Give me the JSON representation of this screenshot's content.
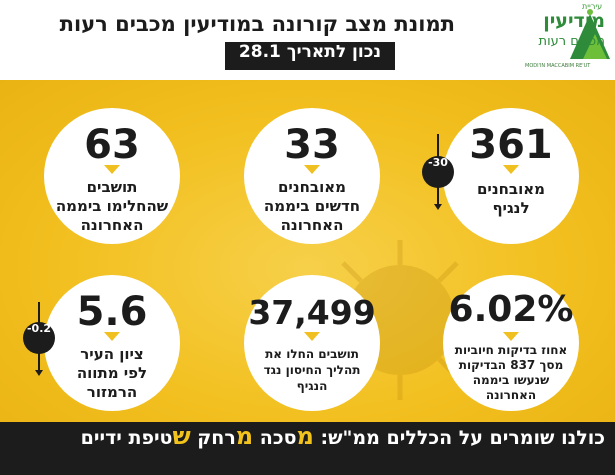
{
  "header": {
    "title": "תמונת מצב קורונה במודיעין מכבים רעות",
    "date": "נכון לתאריך 28.1"
  },
  "logo": {
    "top": "עיריית",
    "main": "מודיעין",
    "sub": "מכבים רעות",
    "en": "MODI'IN MACCABIM RE'UT"
  },
  "stats": [
    {
      "value": "361",
      "label": [
        "מאובחנים",
        "לנגיף"
      ],
      "change": "-30"
    },
    {
      "value": "33",
      "label": [
        "מאובחנים",
        "חדשים ביממה",
        "האחרונה"
      ]
    },
    {
      "value": "63",
      "label": [
        "תושבים",
        "שהחלימו ביממה",
        "האחרונה"
      ]
    },
    {
      "value": "6.02%",
      "label": [
        "אחוז בדיקות חיוביות",
        "מסך 837 הבדיקות",
        "שנעשו ביממה",
        "האחרונה"
      ]
    },
    {
      "value": "37,499",
      "label": [
        "תושבים החלו את",
        "תהליך החיסון נגד",
        "הנגיף"
      ]
    },
    {
      "value": "5.6",
      "label": [
        "ציון העיר",
        "לפי מתווה",
        "הרמזור"
      ],
      "change": "-0.2"
    }
  ],
  "footer": {
    "intro": "כולנו שומרים על הכללים ממ\"ש:",
    "m1": "מ",
    "w1": "סכה",
    "m2": "מ",
    "w2": "רחק",
    "s": "ש",
    "w3": "טיפת ידיים"
  },
  "colors": {
    "accent": "#f2c31c",
    "dark": "#1c1c1c",
    "brand": "#2e8b3a"
  }
}
